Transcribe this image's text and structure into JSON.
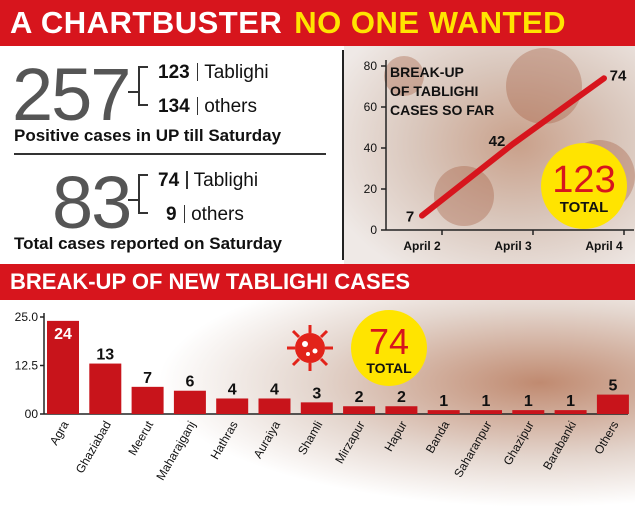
{
  "banner": {
    "part1": "A CHARTBUSTER",
    "part2": "NO ONE WANTED"
  },
  "summary": {
    "total_up": "257",
    "tablighi_up": "123",
    "tablighi_label": "Tablighi",
    "others_up": "134",
    "others_label": "others",
    "caption_up": "Positive cases in UP till Saturday",
    "total_sat": "83",
    "tablighi_sat": "74",
    "others_sat": "9",
    "caption_sat": "Total cases reported on Saturday"
  },
  "chart_data": [
    {
      "type": "line",
      "title": "BREAK-UP OF TABLIGHI CASES SO FAR",
      "title_lines": [
        "BREAK-UP",
        "OF TABLIGHI",
        "CASES SO FAR"
      ],
      "categories": [
        "April 2",
        "April 3",
        "April 4"
      ],
      "values": [
        7,
        42,
        74
      ],
      "yticks": [
        0,
        20,
        40,
        60,
        80
      ],
      "ylim": [
        0,
        80
      ],
      "total_value": "123",
      "total_label": "TOTAL",
      "color": "#d7151d"
    },
    {
      "type": "bar",
      "title": "BREAK-UP OF NEW TABLIGHI CASES",
      "categories": [
        "Agra",
        "Ghaziabad",
        "Meerut",
        "Maharajganj",
        "Hathras",
        "Auraiya",
        "Shamli",
        "Mirzapur",
        "Hapur",
        "Banda",
        "Saharanpur",
        "Ghazipur",
        "Barabanki",
        "Others"
      ],
      "values": [
        24,
        13,
        7,
        6,
        4,
        4,
        3,
        2,
        2,
        1,
        1,
        1,
        1,
        5
      ],
      "yticks": [
        "25.0",
        "12.5",
        "00"
      ],
      "ylim": [
        0,
        25
      ],
      "total_value": "74",
      "total_label": "TOTAL",
      "color": "#c8141b"
    }
  ],
  "colors": {
    "banner_red": "#d7151d",
    "headline_yellow": "#ffe400",
    "circle_yellow": "#ffe400"
  },
  "icons": {
    "virus": "virus-icon"
  }
}
